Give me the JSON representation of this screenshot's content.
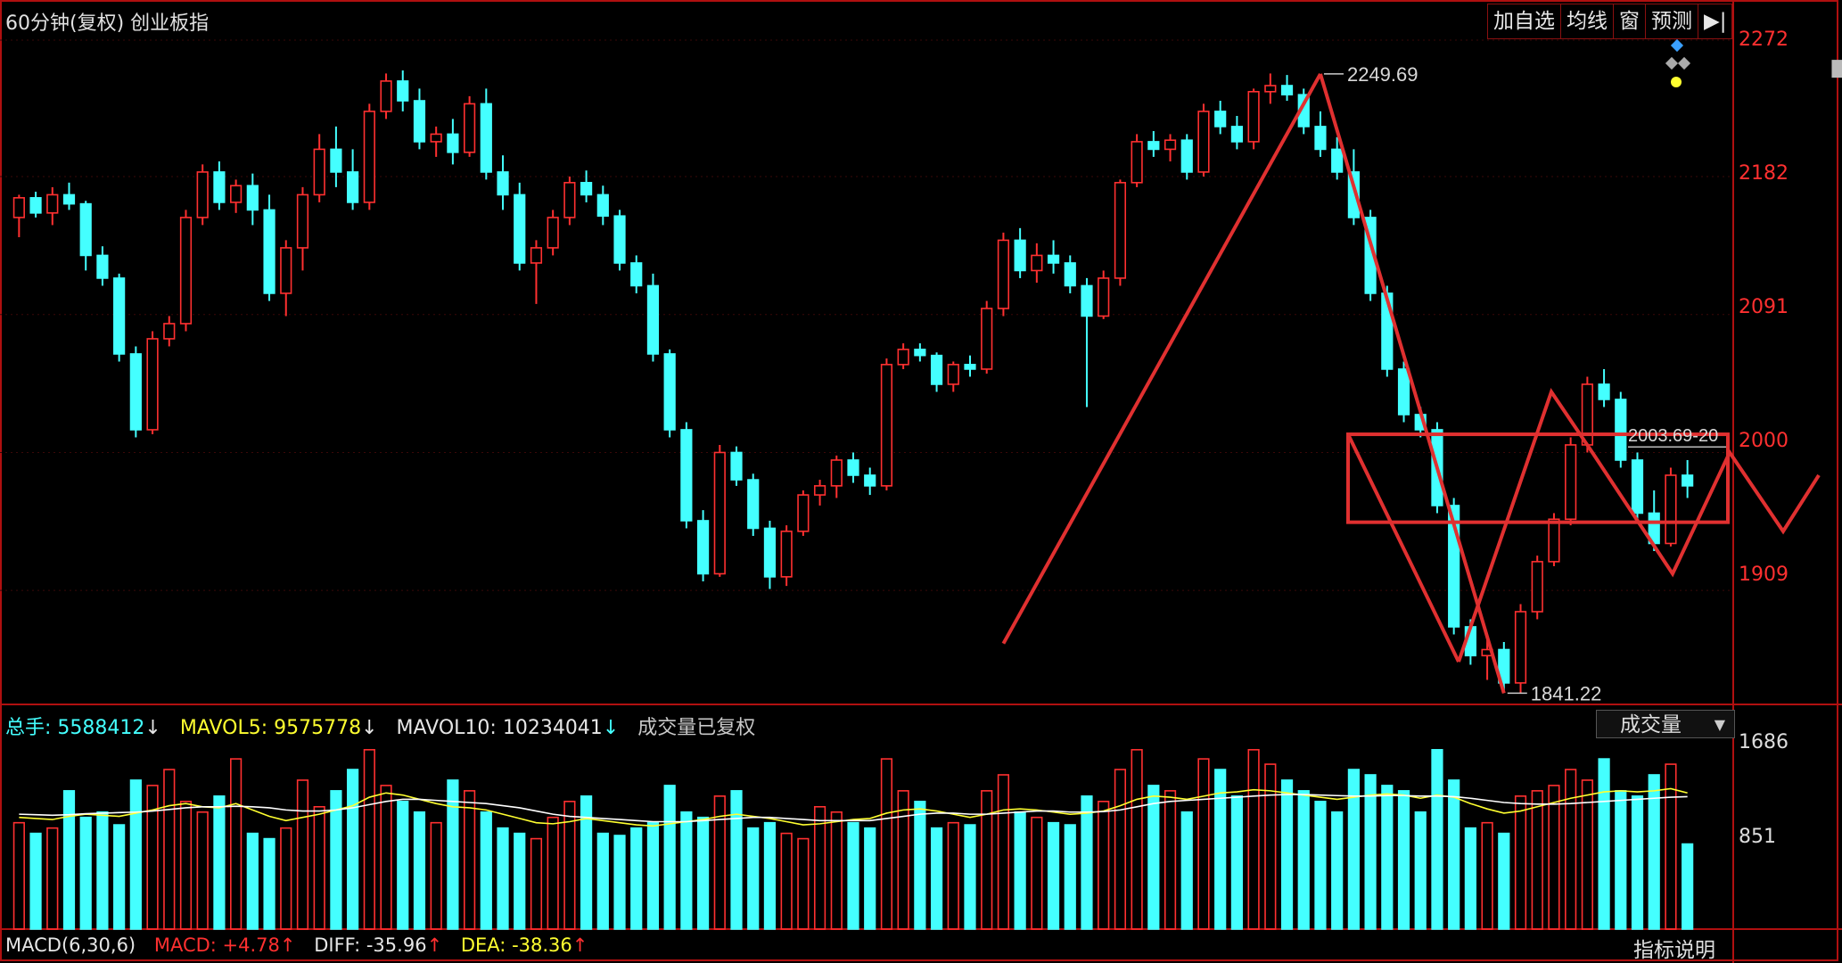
{
  "header": {
    "title": "60分钟(复权)  创业板指"
  },
  "toolbar": {
    "items": [
      "加自选",
      "均线",
      "窗",
      "预测",
      "▶|"
    ]
  },
  "price_axis": {
    "labels": [
      "2272",
      "2182",
      "2091",
      "2000",
      "1909"
    ]
  },
  "volume_axis": {
    "labels": [
      "1686",
      "851"
    ]
  },
  "annotations": {
    "high": "2249.69",
    "low": "1841.22",
    "mid": "2003.69-20"
  },
  "volume_legend": {
    "total_label": "总手:",
    "total_value": "5588412",
    "mavol5_label": "MAVOL5:",
    "mavol5_value": "9575778",
    "mavol10_label": "MAVOL10:",
    "mavol10_value": "10234041",
    "note": "成交量已复权",
    "selector": "成交量",
    "arrow_down": "↓"
  },
  "macd_legend": {
    "name": "MACD(6,30,6)",
    "macd_label": "MACD:",
    "macd_value": "+4.78",
    "diff_label": "DIFF:",
    "diff_value": "-35.96",
    "dea_label": "DEA:",
    "dea_value": "-38.36",
    "arrow_up": "↑",
    "help": "指标说明"
  },
  "colors": {
    "up": "#ff3030",
    "down": "#44ffff",
    "frame": "#b01010",
    "trendline": "#e03030",
    "ma5": "#ffff30",
    "ma10": "#ffffff"
  },
  "chart_data": {
    "type": "candlestick",
    "title": "60分钟(复权) 创业板指",
    "y_range": [
      1835,
      2282
    ],
    "high_marker": 2249.69,
    "low_marker": 1841.22,
    "ohlc": [
      [
        2155,
        2170,
        2142,
        2168
      ],
      [
        2168,
        2172,
        2155,
        2158
      ],
      [
        2158,
        2175,
        2150,
        2170
      ],
      [
        2170,
        2178,
        2160,
        2164
      ],
      [
        2164,
        2166,
        2120,
        2130
      ],
      [
        2130,
        2136,
        2110,
        2115
      ],
      [
        2115,
        2118,
        2060,
        2065
      ],
      [
        2065,
        2070,
        2010,
        2015
      ],
      [
        2015,
        2080,
        2012,
        2075
      ],
      [
        2075,
        2090,
        2070,
        2085
      ],
      [
        2085,
        2160,
        2080,
        2155
      ],
      [
        2155,
        2190,
        2150,
        2185
      ],
      [
        2185,
        2192,
        2160,
        2165
      ],
      [
        2165,
        2180,
        2158,
        2176
      ],
      [
        2176,
        2184,
        2150,
        2160
      ],
      [
        2160,
        2170,
        2100,
        2105
      ],
      [
        2105,
        2140,
        2090,
        2135
      ],
      [
        2135,
        2175,
        2120,
        2170
      ],
      [
        2170,
        2210,
        2165,
        2200
      ],
      [
        2200,
        2215,
        2175,
        2185
      ],
      [
        2185,
        2200,
        2160,
        2165
      ],
      [
        2165,
        2230,
        2160,
        2225
      ],
      [
        2225,
        2250,
        2220,
        2245
      ],
      [
        2245,
        2252,
        2225,
        2232
      ],
      [
        2232,
        2240,
        2200,
        2205
      ],
      [
        2205,
        2215,
        2195,
        2210
      ],
      [
        2210,
        2220,
        2190,
        2198
      ],
      [
        2198,
        2235,
        2195,
        2230
      ],
      [
        2230,
        2240,
        2180,
        2185
      ],
      [
        2185,
        2196,
        2160,
        2170
      ],
      [
        2170,
        2178,
        2120,
        2125
      ],
      [
        2125,
        2140,
        2098,
        2135
      ],
      [
        2135,
        2160,
        2130,
        2155
      ],
      [
        2155,
        2182,
        2150,
        2178
      ],
      [
        2178,
        2186,
        2165,
        2170
      ],
      [
        2170,
        2176,
        2150,
        2156
      ],
      [
        2156,
        2160,
        2120,
        2125
      ],
      [
        2125,
        2130,
        2105,
        2110
      ],
      [
        2110,
        2118,
        2060,
        2065
      ],
      [
        2065,
        2068,
        2010,
        2015
      ],
      [
        2015,
        2020,
        1950,
        1955
      ],
      [
        1955,
        1962,
        1915,
        1920
      ],
      [
        1920,
        2005,
        1918,
        2000
      ],
      [
        2000,
        2004,
        1978,
        1982
      ],
      [
        1982,
        1986,
        1945,
        1950
      ],
      [
        1950,
        1955,
        1910,
        1918
      ],
      [
        1918,
        1952,
        1912,
        1948
      ],
      [
        1948,
        1975,
        1945,
        1972
      ],
      [
        1972,
        1982,
        1965,
        1978
      ],
      [
        1978,
        1998,
        1970,
        1995
      ],
      [
        1995,
        2000,
        1980,
        1985
      ],
      [
        1985,
        1990,
        1972,
        1978
      ],
      [
        1978,
        2062,
        1975,
        2058
      ],
      [
        2058,
        2072,
        2055,
        2068
      ],
      [
        2068,
        2072,
        2060,
        2064
      ],
      [
        2064,
        2066,
        2040,
        2045
      ],
      [
        2045,
        2060,
        2040,
        2058
      ],
      [
        2058,
        2064,
        2050,
        2055
      ],
      [
        2055,
        2100,
        2052,
        2095
      ],
      [
        2095,
        2145,
        2090,
        2140
      ],
      [
        2140,
        2148,
        2115,
        2120
      ],
      [
        2120,
        2138,
        2112,
        2130
      ],
      [
        2130,
        2140,
        2118,
        2125
      ],
      [
        2125,
        2130,
        2105,
        2110
      ],
      [
        2110,
        2115,
        2030,
        2090
      ],
      [
        2090,
        2120,
        2088,
        2115
      ],
      [
        2115,
        2180,
        2110,
        2178
      ],
      [
        2178,
        2210,
        2175,
        2205
      ],
      [
        2205,
        2212,
        2195,
        2200
      ],
      [
        2200,
        2210,
        2192,
        2206
      ],
      [
        2206,
        2210,
        2180,
        2185
      ],
      [
        2185,
        2230,
        2182,
        2225
      ],
      [
        2225,
        2232,
        2210,
        2215
      ],
      [
        2215,
        2222,
        2200,
        2205
      ],
      [
        2205,
        2240,
        2200,
        2238
      ],
      [
        2238,
        2250,
        2230,
        2242
      ],
      [
        2242,
        2249,
        2232,
        2236
      ],
      [
        2236,
        2240,
        2210,
        2215
      ],
      [
        2215,
        2225,
        2195,
        2200
      ],
      [
        2200,
        2208,
        2180,
        2185
      ],
      [
        2185,
        2200,
        2150,
        2155
      ],
      [
        2155,
        2160,
        2100,
        2105
      ],
      [
        2105,
        2110,
        2050,
        2055
      ],
      [
        2055,
        2060,
        2020,
        2025
      ],
      [
        2025,
        2030,
        2010,
        2015
      ],
      [
        2015,
        2020,
        1960,
        1965
      ],
      [
        1965,
        1970,
        1880,
        1885
      ],
      [
        1885,
        1890,
        1860,
        1866
      ],
      [
        1866,
        1880,
        1850,
        1870
      ],
      [
        1870,
        1875,
        1842,
        1848
      ],
      [
        1848,
        1900,
        1841,
        1895
      ],
      [
        1895,
        1932,
        1890,
        1928
      ],
      [
        1928,
        1960,
        1925,
        1956
      ],
      [
        1956,
        2010,
        1952,
        2005
      ],
      [
        2005,
        2050,
        2000,
        2045
      ],
      [
        2045,
        2055,
        2030,
        2035
      ],
      [
        2035,
        2040,
        1990,
        1995
      ],
      [
        1995,
        2000,
        1955,
        1960
      ],
      [
        1960,
        1975,
        1935,
        1940
      ],
      [
        1940,
        1990,
        1938,
        1985
      ],
      [
        1985,
        1995,
        1970,
        1978
      ]
    ],
    "volume": [
      1000,
      900,
      950,
      1300,
      1050,
      1100,
      980,
      1400,
      1350,
      1500,
      1200,
      1100,
      1250,
      1600,
      900,
      850,
      950,
      1400,
      1150,
      1300,
      1500,
      1686,
      1350,
      1200,
      1100,
      1000,
      1400,
      1300,
      1100,
      950,
      900,
      850,
      1050,
      1200,
      1250,
      900,
      880,
      950,
      1000,
      1350,
      1100,
      1050,
      1250,
      1300,
      950,
      1000,
      900,
      850,
      1150,
      1100,
      1000,
      950,
      1600,
      1300,
      1200,
      950,
      1000,
      980,
      1300,
      1450,
      1100,
      1050,
      1000,
      980,
      1250,
      1200,
      1500,
      1686,
      1350,
      1300,
      1100,
      1600,
      1500,
      1250,
      1686,
      1550,
      1400,
      1300,
      1200,
      1100,
      1500,
      1450,
      1350,
      1300,
      1100,
      1686,
      1400,
      950,
      1000,
      900,
      1250,
      1300,
      1350,
      1500,
      1400,
      1600,
      1300,
      1250,
      1450,
      1550,
      800
    ],
    "ma5": [
      1050,
      1040,
      1030,
      1060,
      1080,
      1070,
      1060,
      1090,
      1120,
      1160,
      1180,
      1150,
      1140,
      1180,
      1120,
      1060,
      1020,
      1050,
      1080,
      1120,
      1160,
      1240,
      1280,
      1260,
      1220,
      1180,
      1150,
      1140,
      1120,
      1080,
      1040,
      1000,
      990,
      1010,
      1040,
      1020,
      1000,
      980,
      970,
      990,
      1010,
      1030,
      1060,
      1080,
      1060,
      1040,
      1010,
      980,
      990,
      1010,
      1030,
      1040,
      1090,
      1120,
      1130,
      1110,
      1080,
      1050,
      1080,
      1120,
      1130,
      1120,
      1100,
      1080,
      1090,
      1110,
      1160,
      1220,
      1250,
      1240,
      1220,
      1250,
      1280,
      1290,
      1310,
      1300,
      1280,
      1260,
      1240,
      1220,
      1240,
      1260,
      1270,
      1260,
      1230,
      1260,
      1240,
      1180,
      1130,
      1090,
      1110,
      1150,
      1190,
      1230,
      1260,
      1290,
      1300,
      1290,
      1300,
      1320,
      1280
    ],
    "ma10": [
      1080,
      1075,
      1070,
      1075,
      1085,
      1090,
      1095,
      1100,
      1110,
      1125,
      1140,
      1150,
      1150,
      1155,
      1150,
      1140,
      1120,
      1110,
      1110,
      1120,
      1140,
      1170,
      1200,
      1220,
      1220,
      1210,
      1200,
      1190,
      1180,
      1160,
      1140,
      1110,
      1080,
      1060,
      1050,
      1040,
      1030,
      1020,
      1010,
      1010,
      1010,
      1020,
      1030,
      1040,
      1050,
      1050,
      1040,
      1030,
      1020,
      1020,
      1020,
      1020,
      1040,
      1060,
      1080,
      1090,
      1090,
      1080,
      1080,
      1090,
      1100,
      1110,
      1110,
      1100,
      1100,
      1105,
      1120,
      1150,
      1180,
      1200,
      1210,
      1220,
      1230,
      1240,
      1250,
      1260,
      1265,
      1265,
      1260,
      1255,
      1250,
      1250,
      1255,
      1255,
      1250,
      1250,
      1245,
      1230,
      1210,
      1190,
      1180,
      1175,
      1175,
      1180,
      1190,
      1200,
      1210,
      1220,
      1230,
      1240,
      1245
    ],
    "trendlines": [
      {
        "points": [
          [
            59,
            1874
          ],
          [
            78,
            2249.69
          ]
        ]
      },
      {
        "points": [
          [
            78,
            2249.69
          ],
          [
            89,
            1841.22
          ]
        ]
      }
    ]
  }
}
